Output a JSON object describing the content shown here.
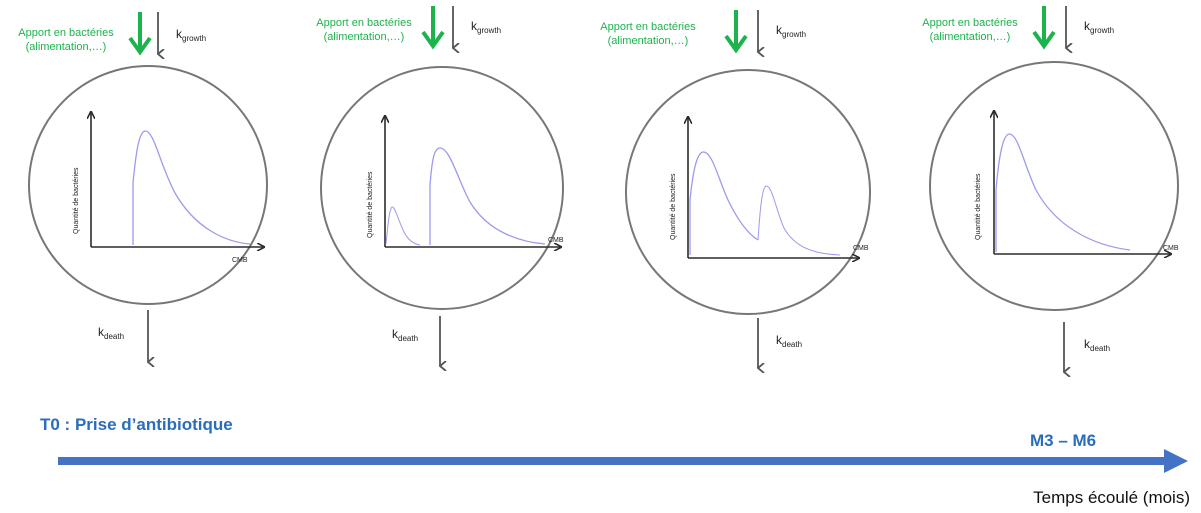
{
  "panels": [
    {
      "supply_line1": "Apport en bactéries",
      "supply_line2": "(alimentation,…)",
      "k_growth_main": "k",
      "k_growth_sub": "growth",
      "k_death_main": "k",
      "k_death_sub": "death",
      "y_label": "Quantité de bactéries",
      "x_label": "CMB"
    },
    {
      "supply_line1": "Apport en bactéries",
      "supply_line2": "(alimentation,…)",
      "k_growth_main": "k",
      "k_growth_sub": "growth",
      "k_death_main": "k",
      "k_death_sub": "death",
      "y_label": "Quantité de bactéries",
      "x_label": "CMB"
    },
    {
      "supply_line1": "Apport en bactéries",
      "supply_line2": "(alimentation,…)",
      "k_growth_main": "k",
      "k_growth_sub": "growth",
      "k_death_main": "k",
      "k_death_sub": "death",
      "y_label": "Quantité de bactéries",
      "x_label": "CMB"
    },
    {
      "supply_line1": "Apport en bactéries",
      "supply_line2": "(alimentation,…)",
      "k_growth_main": "k",
      "k_growth_sub": "growth",
      "k_death_main": "k",
      "k_death_sub": "death",
      "y_label": "Quantité de bactéries",
      "x_label": "CMB"
    }
  ],
  "timeline": {
    "start_label": "T0 : Prise d’antibiotique",
    "end_label": "M3 – M6",
    "axis_label": "Temps écoulé (mois)"
  },
  "colors": {
    "supply_arrow": "#1db34c",
    "k_arrow": "#555555",
    "circle": "#777777",
    "curve": "#9b9bee",
    "axis": "#2b2b2b",
    "timeline": "#4472c4",
    "timeline_text": "#2a6ebb"
  }
}
